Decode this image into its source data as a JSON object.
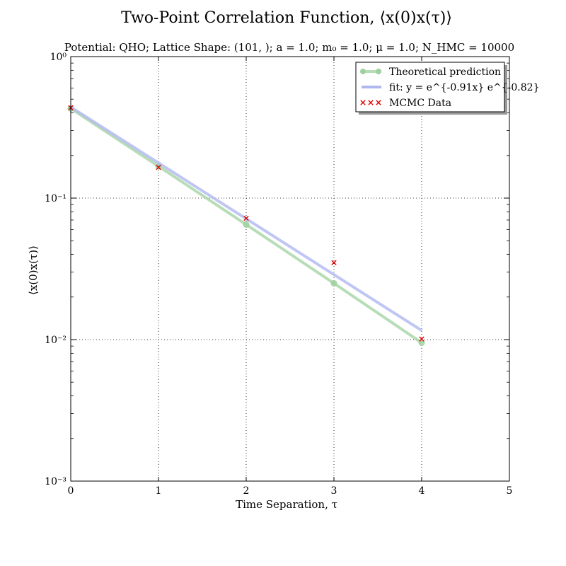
{
  "chart_data": {
    "type": "line",
    "title": "Two-Point Correlation Function, ⟨x(0)x(τ)⟩",
    "subtitle": "Potential: QHO; Lattice Shape: (101, ); a = 1.0; m₀ = 1.0; μ = 1.0; N_HMC = 10000",
    "xlabel": "Time Separation, τ",
    "ylabel": "⟨x(0)x(τ)⟩",
    "xlim": [
      0,
      5
    ],
    "ylim": [
      0.001,
      1
    ],
    "yscale": "log",
    "grid": true,
    "legend_position": "top-right",
    "x_ticks": [
      0,
      1,
      2,
      3,
      4,
      5
    ],
    "x_tick_labels": [
      "0",
      "1",
      "2",
      "3",
      "4",
      "5"
    ],
    "y_ticks": [
      0.001,
      0.01,
      0.1,
      1
    ],
    "y_tick_labels": [
      "10⁻³",
      "10⁻²",
      "10⁻¹",
      "10⁰"
    ],
    "series": [
      {
        "name": "Theoretical prediction",
        "style": "line-marker",
        "color": "#9fd19f",
        "x": [
          0,
          1,
          2,
          3,
          4
        ],
        "y": [
          0.43,
          0.168,
          0.065,
          0.025,
          0.0095
        ]
      },
      {
        "name": "fit: y = e^{-0.91x} e^{-0.82}",
        "style": "line",
        "color": "#b0b8f0",
        "x": [
          0,
          4
        ],
        "y": [
          0.44,
          0.0116
        ]
      },
      {
        "name": "MCMC Data",
        "style": "x-marker",
        "color": "#e00000",
        "x": [
          0,
          1,
          2,
          3,
          4
        ],
        "y": [
          0.435,
          0.165,
          0.072,
          0.035,
          0.0101
        ]
      }
    ]
  }
}
